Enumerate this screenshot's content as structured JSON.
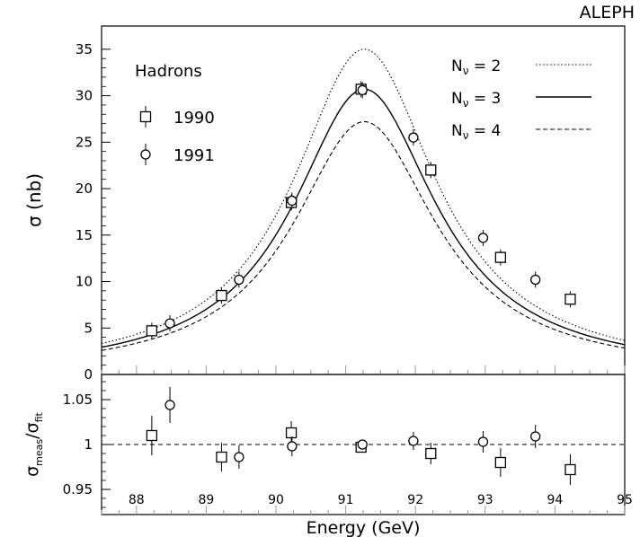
{
  "chart_data": [
    {
      "type": "line",
      "title": "ALEPH",
      "ylabel": "σ (nb)",
      "xlim": [
        87.5,
        95
      ],
      "ylim": [
        0,
        37.5
      ],
      "y_ticks": [
        0,
        5,
        10,
        15,
        20,
        25,
        30,
        35
      ],
      "y_tick_labels": [
        "0",
        "5",
        "10",
        "15",
        "20",
        "25",
        "30",
        "35"
      ],
      "grid": false,
      "annotation": "Hadrons",
      "curve_legend_placement": "top-right",
      "data_legend_placement": "top-left",
      "curves": [
        {
          "label": "N",
          "sub": "ν",
          "suffix": " = 2",
          "style": "dotted",
          "peak": 35.0
        },
        {
          "label": "N",
          "sub": "ν",
          "suffix": " = 3",
          "style": "solid",
          "peak": 30.7
        },
        {
          "label": "N",
          "sub": "ν",
          "suffix": " = 4",
          "style": "dashed",
          "peak": 27.2
        }
      ],
      "curve_params": {
        "mass": 91.25,
        "width": 2.5
      },
      "series": [
        {
          "name": "1990",
          "marker": "square",
          "points": [
            {
              "x": 88.22,
              "y": 4.7
            },
            {
              "x": 89.22,
              "y": 8.5
            },
            {
              "x": 90.22,
              "y": 18.5
            },
            {
              "x": 91.22,
              "y": 30.7
            },
            {
              "x": 92.22,
              "y": 22.0
            },
            {
              "x": 93.22,
              "y": 12.6
            },
            {
              "x": 94.22,
              "y": 8.1
            }
          ]
        },
        {
          "name": "1991",
          "marker": "circle",
          "points": [
            {
              "x": 88.48,
              "y": 5.5
            },
            {
              "x": 89.47,
              "y": 10.2
            },
            {
              "x": 90.23,
              "y": 18.7
            },
            {
              "x": 91.24,
              "y": 30.6
            },
            {
              "x": 91.97,
              "y": 25.5
            },
            {
              "x": 92.97,
              "y": 14.7
            },
            {
              "x": 93.72,
              "y": 10.2
            }
          ]
        }
      ]
    },
    {
      "type": "scatter",
      "ylabel_main": "σ",
      "ylabel_main_sub": "meas",
      "ylabel_sep": "/",
      "ylabel_den": "σ",
      "ylabel_den_sub": "fit",
      "xlabel": "Energy (GeV)",
      "xlim": [
        87.5,
        95
      ],
      "ylim": [
        0.922,
        1.078
      ],
      "x_ticks": [
        88,
        89,
        90,
        91,
        92,
        93,
        94,
        95
      ],
      "x_tick_labels": [
        "88",
        "89",
        "90",
        "91",
        "92",
        "93",
        "94",
        "95"
      ],
      "y_ticks": [
        0.95,
        1.0,
        1.05
      ],
      "y_tick_labels": [
        "0.95",
        "1",
        "1.05"
      ],
      "reference_line": 1.0,
      "grid": false,
      "series": [
        {
          "name": "1990",
          "marker": "square",
          "points": [
            {
              "x": 88.22,
              "y": 1.01,
              "err": 0.022
            },
            {
              "x": 89.22,
              "y": 0.986,
              "err": 0.016
            },
            {
              "x": 90.22,
              "y": 1.013,
              "err": 0.013
            },
            {
              "x": 91.22,
              "y": 0.997,
              "err": 0.006
            },
            {
              "x": 92.22,
              "y": 0.99,
              "err": 0.012
            },
            {
              "x": 93.22,
              "y": 0.98,
              "err": 0.016
            },
            {
              "x": 94.22,
              "y": 0.972,
              "err": 0.017
            }
          ]
        },
        {
          "name": "1991",
          "marker": "circle",
          "points": [
            {
              "x": 88.48,
              "y": 1.044,
              "err": 0.02
            },
            {
              "x": 89.47,
              "y": 0.986,
              "err": 0.013
            },
            {
              "x": 90.23,
              "y": 0.998,
              "err": 0.011
            },
            {
              "x": 91.24,
              "y": 1.0,
              "err": 0.005
            },
            {
              "x": 91.97,
              "y": 1.004,
              "err": 0.01
            },
            {
              "x": 92.97,
              "y": 1.003,
              "err": 0.012
            },
            {
              "x": 93.72,
              "y": 1.009,
              "err": 0.013
            }
          ]
        }
      ]
    }
  ]
}
